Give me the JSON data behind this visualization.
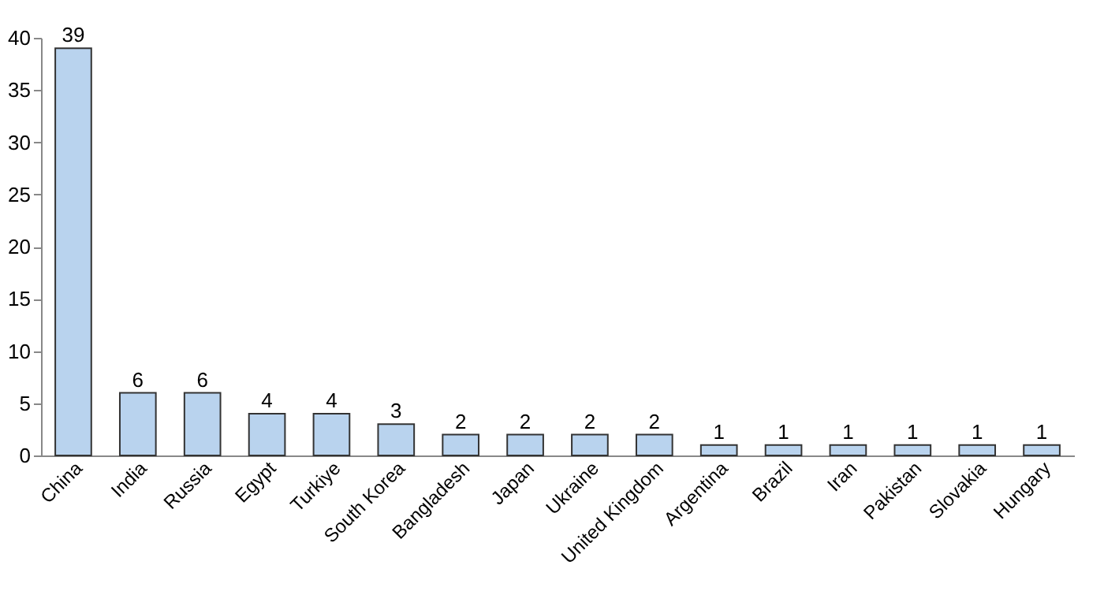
{
  "chart_data": {
    "type": "bar",
    "categories": [
      "China",
      "India",
      "Russia",
      "Egypt",
      "Turkiye",
      "South Korea",
      "Bangladesh",
      "Japan",
      "Ukraine",
      "United Kingdom",
      "Argentina",
      "Brazil",
      "Iran",
      "Pakistan",
      "Slovakia",
      "Hungary"
    ],
    "values": [
      39,
      6,
      6,
      4,
      4,
      3,
      2,
      2,
      2,
      2,
      1,
      1,
      1,
      1,
      1,
      1
    ],
    "color": "#b9d3ee",
    "ylim": [
      0,
      40
    ],
    "yticks": [
      0,
      5,
      10,
      15,
      20,
      25,
      30,
      35,
      40
    ],
    "data_labels": true,
    "grid": false
  }
}
